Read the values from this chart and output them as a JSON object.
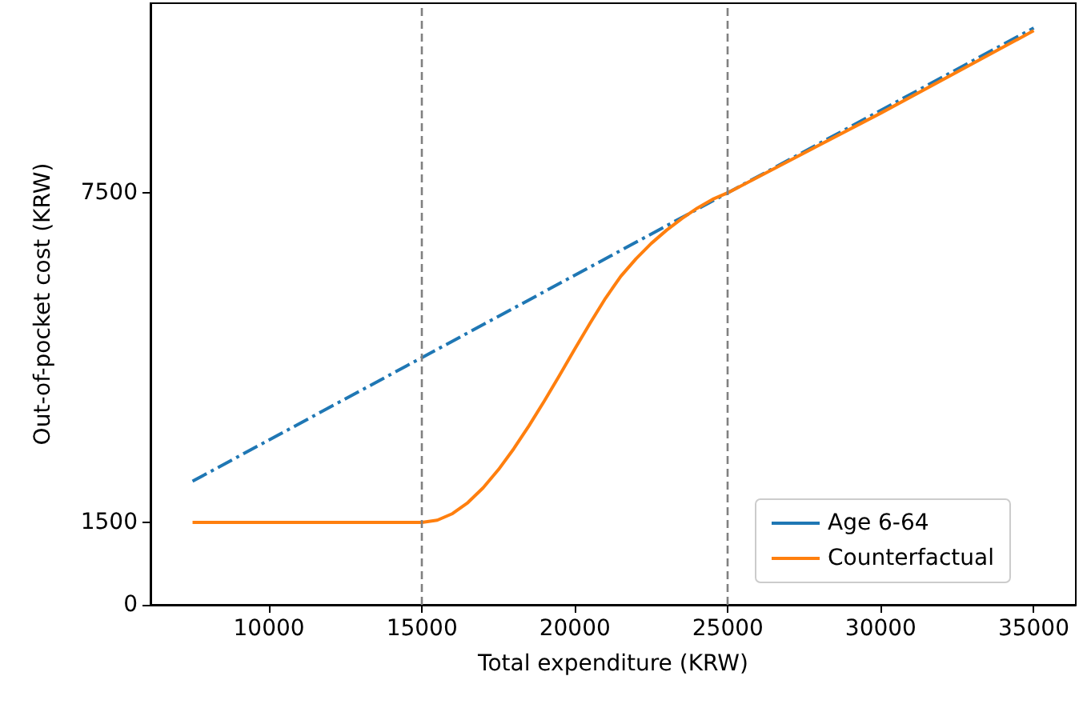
{
  "chart_data": {
    "type": "line",
    "xlabel": "Total expenditure (KRW)",
    "ylabel": "Out-of-pocket cost (KRW)",
    "xlim": [
      6125,
      36375
    ],
    "xticks": [
      10000,
      15000,
      20000,
      25000,
      30000,
      35000
    ],
    "ylim": [
      0,
      10950
    ],
    "yticks": [
      0,
      1500,
      7500
    ],
    "grid": false,
    "legend": "bottom right",
    "marker": "none",
    "series": [
      {
        "name": "Age 6-64",
        "color": "#1f77b4",
        "line_style": "dashed",
        "x": [
          7500,
          35000
        ],
        "values": [
          2250,
          10500
        ]
      },
      {
        "name": "Counterfactual",
        "color": "#ff7f0e",
        "line_style": "solid",
        "x": [
          7500,
          15000,
          15500,
          16000,
          16500,
          17000,
          17500,
          18000,
          18500,
          19000,
          19500,
          20000,
          20500,
          21000,
          21500,
          22000,
          22500,
          23000,
          23500,
          24000,
          24500,
          25000,
          30000,
          35000
        ],
        "values": [
          1500,
          1500,
          1540,
          1660,
          1860,
          2130,
          2460,
          2840,
          3260,
          3710,
          4180,
          4660,
          5130,
          5580,
          5980,
          6300,
          6580,
          6820,
          7030,
          7220,
          7380,
          7500,
          8950,
          10450
        ]
      }
    ],
    "ref_lines": [
      {
        "axis": "x",
        "value": 15000,
        "color": "#808080",
        "line_style": "dashed"
      },
      {
        "axis": "x",
        "value": 25000,
        "color": "#808080",
        "line_style": "dashed"
      }
    ]
  }
}
